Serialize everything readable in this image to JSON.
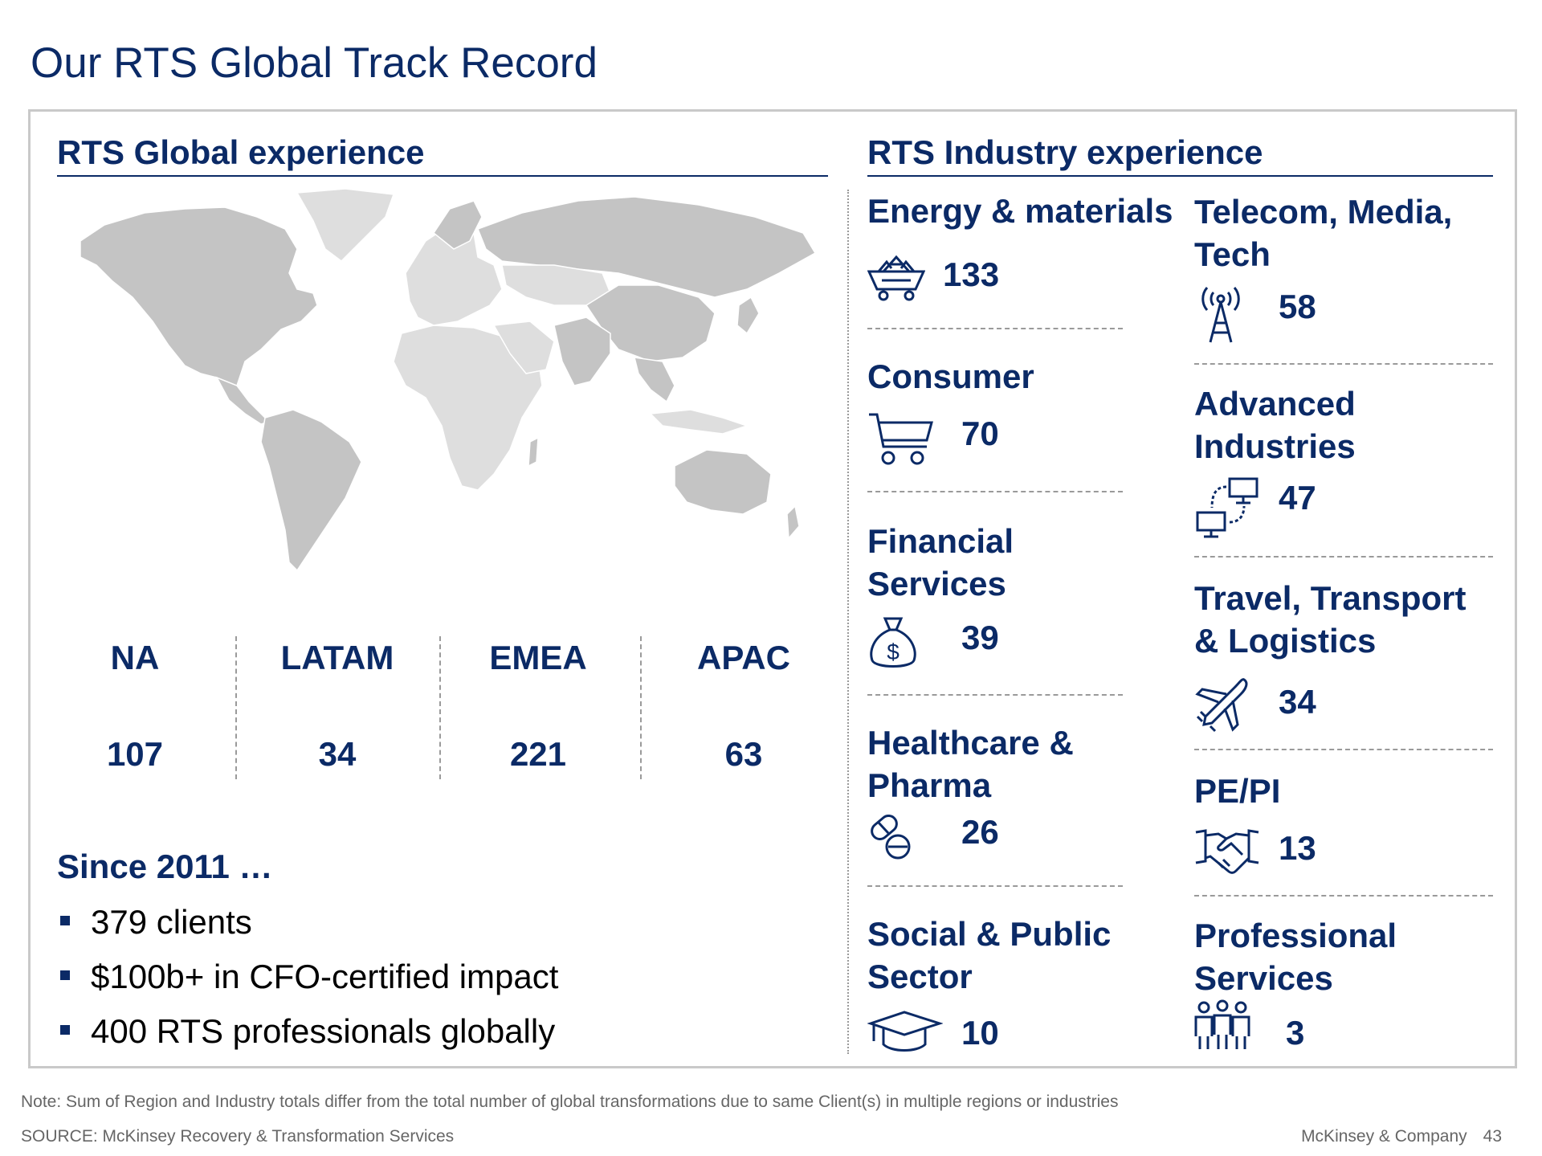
{
  "title": "Our RTS Global Track Record",
  "left": {
    "heading": "RTS Global experience",
    "regions": [
      {
        "label": "NA",
        "value": "107"
      },
      {
        "label": "LATAM",
        "value": "34"
      },
      {
        "label": "EMEA",
        "value": "221"
      },
      {
        "label": "APAC",
        "value": "63"
      }
    ],
    "since": "Since 2011 …",
    "bullets": [
      "379 clients",
      "$100b+ in CFO-certified impact",
      "400 RTS professionals globally"
    ]
  },
  "right": {
    "heading": "RTS Industry experience",
    "industries": [
      {
        "name": "Energy & materials",
        "count": "133",
        "icon": "mining-cart-icon"
      },
      {
        "name": "Consumer",
        "count": "70",
        "icon": "shopping-cart-icon"
      },
      {
        "name": "Financial\nServices",
        "count": "39",
        "icon": "money-bag-icon"
      },
      {
        "name": "Healthcare &\nPharma",
        "count": "26",
        "icon": "pills-icon"
      },
      {
        "name": "Social & Public\nSector",
        "count": "10",
        "icon": "graduation-cap-icon"
      },
      {
        "name": "Telecom, Media,\nTech",
        "count": "58",
        "icon": "antenna-icon"
      },
      {
        "name": "Advanced\nIndustries",
        "count": "47",
        "icon": "connected-computers-icon"
      },
      {
        "name": "Travel, Transport\n& Logistics",
        "count": "34",
        "icon": "airplane-icon"
      },
      {
        "name": "PE/PI",
        "count": "13",
        "icon": "handshake-icon"
      },
      {
        "name": "Professional\nServices",
        "count": "3",
        "icon": "people-group-icon"
      }
    ]
  },
  "footer": {
    "note": "Note: Sum of Region and Industry totals differ from the total number of global transformations due to same Client(s) in multiple regions or industries",
    "source": "SOURCE: McKinsey Recovery & Transformation Services",
    "company": "McKinsey & Company",
    "page": "43"
  },
  "colors": {
    "brand": "#0b2a66",
    "map_dark": "#c4c4c4",
    "map_light": "#dedede",
    "rule": "#9a9a9a"
  }
}
